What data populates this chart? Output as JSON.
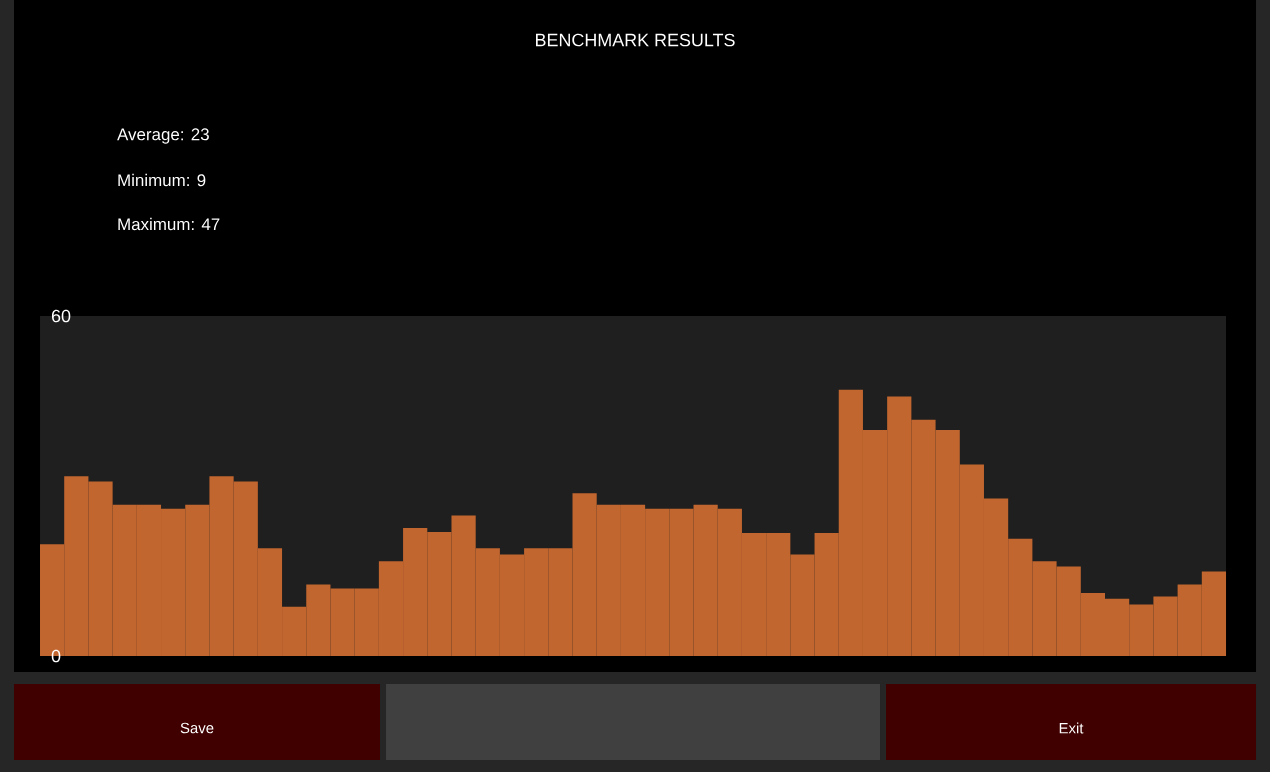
{
  "chart_data": {
    "type": "bar",
    "title": "BENCHMARK RESULTS",
    "annotations": [
      "Average: 23",
      "Minimum: 9",
      "Maximum: 47",
      "Save",
      "Exit"
    ],
    "categories": [
      null,
      null,
      null,
      null,
      null,
      null,
      null,
      null,
      null,
      null,
      null,
      null,
      null,
      null,
      null,
      null,
      null,
      null,
      null,
      null,
      null,
      null,
      null,
      null,
      null,
      null,
      null,
      null,
      null,
      null,
      null,
      null,
      null,
      null,
      null,
      null,
      null,
      null,
      null,
      null,
      null,
      null,
      null,
      null,
      null,
      null,
      null,
      null,
      null
    ],
    "values": [
      19.7,
      31.7,
      30.8,
      26.7,
      26.7,
      26.0,
      26.7,
      31.7,
      30.8,
      19.0,
      8.7,
      12.6,
      11.9,
      11.9,
      16.7,
      22.6,
      21.9,
      24.8,
      19.0,
      17.9,
      19.0,
      19.0,
      28.7,
      26.7,
      26.7,
      26.0,
      26.0,
      26.7,
      26.0,
      21.7,
      21.7,
      17.9,
      21.7,
      47,
      39.9,
      45.8,
      41.7,
      39.9,
      33.8,
      27.8,
      20.7,
      16.7,
      15.8,
      11.1,
      10.1,
      9.1,
      10.5,
      12.6,
      14.9
    ],
    "color": "#c2662f",
    "ylim": [
      0,
      60
    ],
    "yticks": [
      0,
      60
    ]
  }
}
